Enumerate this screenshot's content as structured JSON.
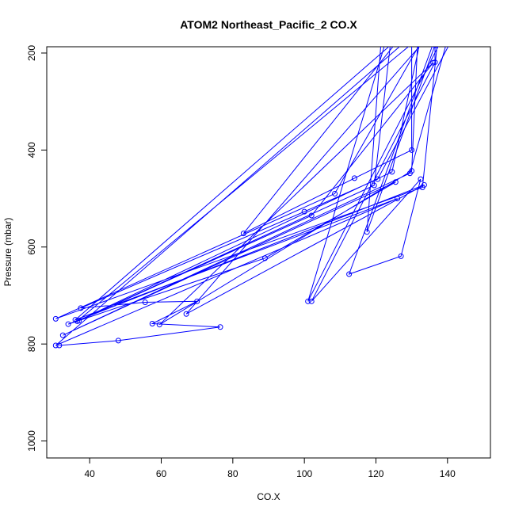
{
  "chart_data": {
    "type": "line",
    "title": "ATOM2 Northeast_Pacific_2 CO.X",
    "xlabel": "CO.X",
    "ylabel": "Pressure (mbar)",
    "xlim": [
      28,
      152
    ],
    "ylim": [
      1035,
      187
    ],
    "y_reversed": true,
    "x_ticks": [
      40,
      60,
      80,
      100,
      120,
      140
    ],
    "y_ticks": [
      200,
      400,
      600,
      800,
      1000
    ],
    "grid": false,
    "legend": "none",
    "colors": {
      "series": "#0000ff",
      "axis": "#000000"
    },
    "series": [
      {
        "points": [
          [
            31.5,
            803
          ],
          [
            48,
            793
          ],
          [
            76.5,
            765
          ],
          [
            57.5,
            758
          ],
          [
            70,
            712
          ],
          [
            55.5,
            714
          ],
          [
            37.5,
            726
          ],
          [
            100,
            527
          ],
          [
            120.5,
            460
          ],
          [
            145,
            120
          ],
          [
            122,
            120
          ],
          [
            117.5,
            569
          ],
          [
            136.5,
            184
          ],
          [
            136.5,
            219
          ],
          [
            102,
            712
          ],
          [
            132.5,
            460
          ],
          [
            127,
            619
          ],
          [
            112.5,
            656
          ],
          [
            139,
            120
          ],
          [
            138,
            120
          ],
          [
            133,
            477
          ],
          [
            30.5,
            748
          ],
          [
            108.5,
            490
          ],
          [
            137,
            120
          ],
          [
            30.5,
            803
          ],
          [
            126,
            500
          ],
          [
            36,
            750
          ],
          [
            134,
            120
          ],
          [
            124.5,
            445
          ],
          [
            36.5,
            753
          ],
          [
            140,
            120
          ],
          [
            67,
            738
          ],
          [
            133.5,
            472
          ],
          [
            34,
            759
          ],
          [
            89,
            623
          ],
          [
            125.5,
            466
          ],
          [
            32.5,
            782
          ],
          [
            129.5,
            448
          ],
          [
            142,
            120
          ],
          [
            101,
            712
          ],
          [
            125,
            120
          ],
          [
            119.5,
            473
          ],
          [
            37,
            752
          ],
          [
            102,
            535
          ],
          [
            136,
            220
          ],
          [
            59.5,
            760
          ],
          [
            130,
            443
          ],
          [
            132,
            120
          ],
          [
            83,
            572
          ],
          [
            114,
            458
          ],
          [
            130,
            400
          ],
          [
            130,
            120
          ],
          [
            118,
            120
          ]
        ]
      }
    ]
  }
}
